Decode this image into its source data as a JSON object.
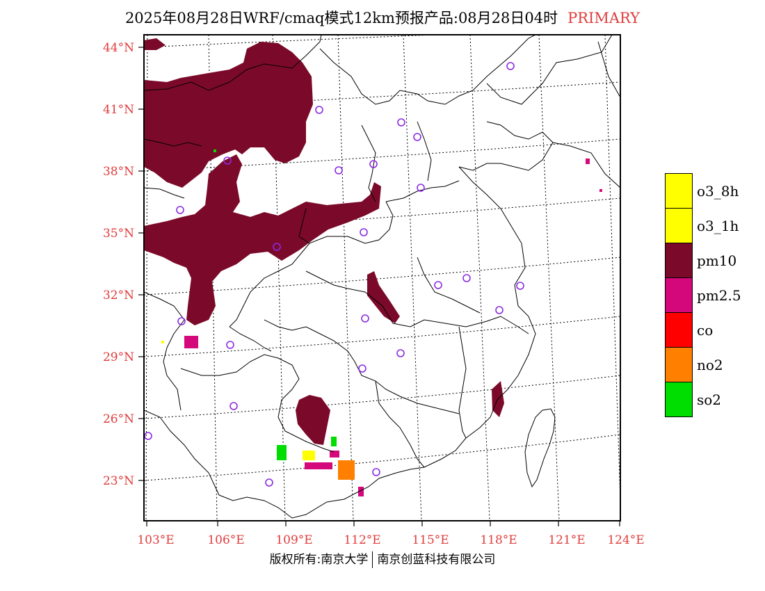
{
  "title": {
    "main": "2025年08月28日WRF/cmaq模式12km预报产品:08月28日04时",
    "tag": "PRIMARY"
  },
  "axes": {
    "lat_labels": [
      "44°N",
      "41°N",
      "38°N",
      "35°N",
      "32°N",
      "29°N",
      "26°N",
      "23°N"
    ],
    "lat_values": [
      44,
      41,
      38,
      35,
      32,
      29,
      26,
      23
    ],
    "lon_labels": [
      "103°E",
      "106°E",
      "109°E",
      "112°E",
      "115°E",
      "118°E",
      "121°E",
      "124°E"
    ],
    "lon_values": [
      103,
      106,
      109,
      112,
      115,
      118,
      121,
      124
    ]
  },
  "legend": [
    {
      "label": "o3_8h",
      "color": "#ffff00"
    },
    {
      "label": "o3_1h",
      "color": "#ffff00"
    },
    {
      "label": "pm10",
      "color": "#7b0a2a"
    },
    {
      "label": "pm2.5",
      "color": "#d4087a"
    },
    {
      "label": "co",
      "color": "#ff0000"
    },
    {
      "label": "no2",
      "color": "#ff7f00"
    },
    {
      "label": "so2",
      "color": "#00dd00"
    }
  ],
  "footer": {
    "left": "版权所有:南京大学",
    "right": "南京创蓝科技有限公司"
  },
  "colors": {
    "pm10": "#7b0a2a",
    "pm25": "#d4087a",
    "no2": "#ff7f00",
    "so2": "#00dd00",
    "o3": "#ffff00",
    "station": "#8a2be2",
    "label": "#e03c3c"
  }
}
